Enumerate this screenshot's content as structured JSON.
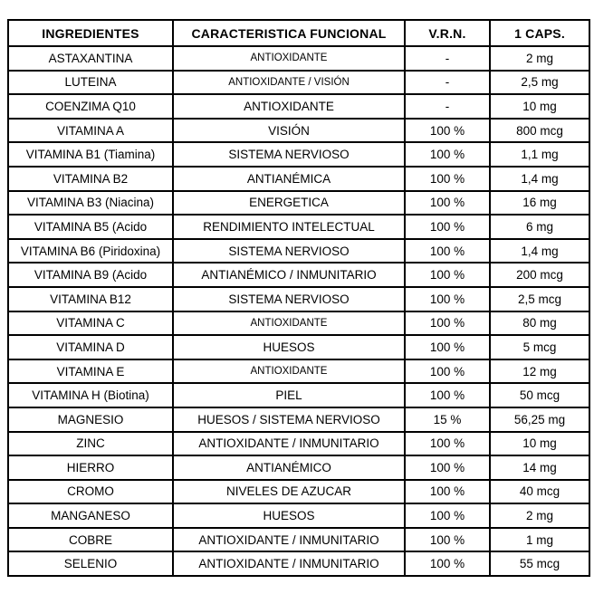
{
  "colors": {
    "background": "#ffffff",
    "border": "#000000",
    "text": "#000000"
  },
  "table": {
    "headers": [
      "INGREDIENTES",
      "CARACTERISTICA FUNCIONAL",
      "V.R.N.",
      "1 CAPS."
    ],
    "rows": [
      {
        "ingredient": "ASTAXANTINA",
        "function": "ANTIOXIDANTE",
        "vrn": "-",
        "caps": "2 mg",
        "function_small": true
      },
      {
        "ingredient": "LUTEINA",
        "function": "ANTIOXIDANTE / VISIÓN",
        "vrn": "-",
        "caps": "2,5 mg",
        "function_small": true
      },
      {
        "ingredient": "COENZIMA Q10",
        "function": "ANTIOXIDANTE",
        "vrn": "-",
        "caps": "10 mg",
        "function_small": false
      },
      {
        "ingredient": "VITAMINA A",
        "function": "VISIÓN",
        "vrn": "100 %",
        "caps": "800 mcg",
        "function_small": false
      },
      {
        "ingredient": "VITAMINA B1 (Tiamina)",
        "function": "SISTEMA NERVIOSO",
        "vrn": "100 %",
        "caps": "1,1 mg",
        "function_small": false
      },
      {
        "ingredient": "VITAMINA B2",
        "function": "ANTIANÉMICA",
        "vrn": "100 %",
        "caps": "1,4 mg",
        "function_small": false
      },
      {
        "ingredient": "VITAMINA B3 (Niacina)",
        "function": "ENERGETICA",
        "vrn": "100 %",
        "caps": "16 mg",
        "function_small": false
      },
      {
        "ingredient": "VITAMINA B5 (Acido",
        "function": "RENDIMIENTO INTELECTUAL",
        "vrn": "100 %",
        "caps": "6 mg",
        "function_small": false
      },
      {
        "ingredient": "VITAMINA B6 (Piridoxina)",
        "function": "SISTEMA NERVIOSO",
        "vrn": "100 %",
        "caps": "1,4 mg",
        "function_small": false
      },
      {
        "ingredient": "VITAMINA B9 (Acido",
        "function": "ANTIANÉMICO / INMUNITARIO",
        "vrn": "100 %",
        "caps": "200 mcg",
        "function_small": false
      },
      {
        "ingredient": "VITAMINA B12",
        "function": "SISTEMA NERVIOSO",
        "vrn": "100 %",
        "caps": "2,5 mcg",
        "function_small": false
      },
      {
        "ingredient": "VITAMINA C",
        "function": "ANTIOXIDANTE",
        "vrn": "100 %",
        "caps": "80 mg",
        "function_small": true
      },
      {
        "ingredient": "VITAMINA D",
        "function": "HUESOS",
        "vrn": "100 %",
        "caps": "5 mcg",
        "function_small": false
      },
      {
        "ingredient": "VITAMINA E",
        "function": "ANTIOXIDANTE",
        "vrn": "100 %",
        "caps": "12 mg",
        "function_small": true
      },
      {
        "ingredient": "VITAMINA H (Biotina)",
        "function": "PIEL",
        "vrn": "100 %",
        "caps": "50 mcg",
        "function_small": false
      },
      {
        "ingredient": "MAGNESIO",
        "function": "HUESOS / SISTEMA NERVIOSO",
        "vrn": "15 %",
        "caps": "56,25 mg",
        "function_small": false
      },
      {
        "ingredient": "ZINC",
        "function": "ANTIOXIDANTE / INMUNITARIO",
        "vrn": "100 %",
        "caps": "10 mg",
        "function_small": false
      },
      {
        "ingredient": "HIERRO",
        "function": "ANTIANÉMICO",
        "vrn": "100 %",
        "caps": "14 mg",
        "function_small": false
      },
      {
        "ingredient": "CROMO",
        "function": "NIVELES DE AZUCAR",
        "vrn": "100 %",
        "caps": "40 mcg",
        "function_small": false
      },
      {
        "ingredient": "MANGANESO",
        "function": "HUESOS",
        "vrn": "100 %",
        "caps": "2 mg",
        "function_small": false
      },
      {
        "ingredient": "COBRE",
        "function": "ANTIOXIDANTE / INMUNITARIO",
        "vrn": "100 %",
        "caps": "1 mg",
        "function_small": false
      },
      {
        "ingredient": "SELENIO",
        "function": "ANTIOXIDANTE / INMUNITARIO",
        "vrn": "100 %",
        "caps": "55 mcg",
        "function_small": false
      }
    ]
  }
}
